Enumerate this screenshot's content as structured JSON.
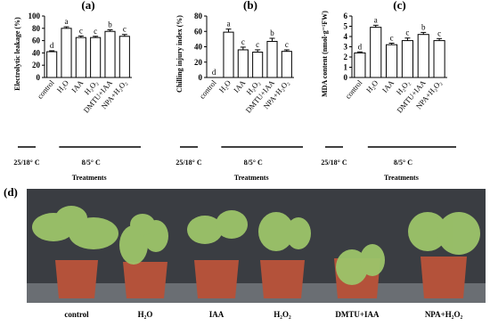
{
  "chart_data": [
    {
      "type": "bar",
      "title": "(a)",
      "ylabel": "Electrolytic leakage (%)",
      "xlabel": "Treatments",
      "categories": [
        "control",
        "H₂O",
        "IAA",
        "H₂O₂",
        "DMTU+IAA",
        "NPA+H₂O₂"
      ],
      "values": [
        42,
        80,
        65,
        65,
        75,
        67
      ],
      "errors": [
        1.5,
        2.5,
        2.5,
        2,
        2.5,
        3
      ],
      "letters": [
        "d",
        "a",
        "c",
        "c",
        "b",
        "c"
      ],
      "color": "#ffffff",
      "group_labels": [
        "25/18° C",
        "8/5° C"
      ],
      "ylim": [
        0,
        100
      ],
      "yticks": [
        0,
        20,
        40,
        60,
        80,
        100
      ]
    },
    {
      "type": "bar",
      "title": "(b)",
      "ylabel": "Chilling injury index (%)",
      "xlabel": "Treatments",
      "categories": [
        "control",
        "H₂O",
        "IAA",
        "H₂O₂",
        "DMTU+IAA",
        "NPA+H₂O₂"
      ],
      "values": [
        0,
        59,
        36,
        33,
        47,
        34
      ],
      "errors": [
        0,
        4,
        3.5,
        3,
        4,
        2
      ],
      "letters": [
        "d",
        "a",
        "c",
        "c",
        "b",
        "c"
      ],
      "color": "#ffffff",
      "group_labels": [
        "25/18° C",
        "8/5° C"
      ],
      "ylim": [
        0,
        80
      ],
      "yticks": [
        0,
        20,
        40,
        60,
        80
      ]
    },
    {
      "type": "bar",
      "title": "(c)",
      "ylabel": "MDA content (nmol·g⁻¹FW)",
      "xlabel": "Treatments",
      "categories": [
        "control",
        "H₂O",
        "IAA",
        "H₂O₂",
        "DMTU+IAA",
        "NPA+H₂O₂"
      ],
      "values": [
        2.4,
        4.9,
        3.2,
        3.6,
        4.2,
        3.6
      ],
      "errors": [
        0.1,
        0.2,
        0.15,
        0.25,
        0.2,
        0.2
      ],
      "letters": [
        "d",
        "a",
        "c",
        "c",
        "b",
        "c"
      ],
      "color": "#ffffff",
      "group_labels": [
        "25/18° C",
        "8/5° C"
      ],
      "ylim": [
        0,
        6
      ],
      "yticks": [
        0,
        1,
        2,
        3,
        4,
        5,
        6
      ]
    }
  ],
  "photo": {
    "label": "(d)",
    "labels": [
      "control",
      "H₂O",
      "IAA",
      "H₂O₂",
      "DMTU+IAA",
      "NPA+H₂O₂"
    ]
  }
}
